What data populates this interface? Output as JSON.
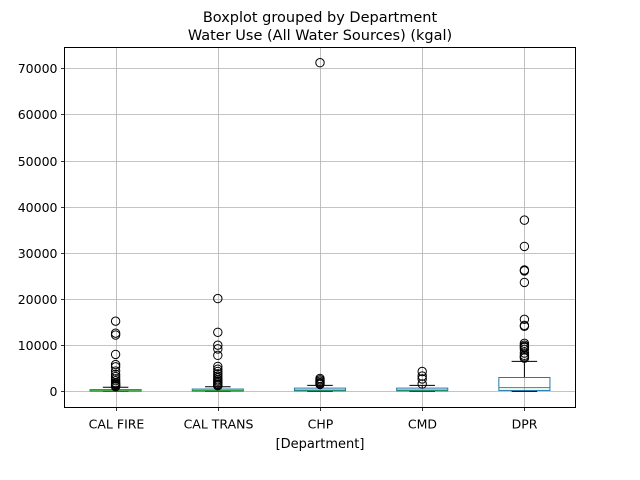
{
  "chart_data": {
    "type": "boxplot",
    "title": "Boxplot grouped by Department",
    "subtitle": "Water Use (All Water Sources) (kgal)",
    "xlabel": "[Department]",
    "ylabel": "",
    "ylim": [
      -3500,
      74500
    ],
    "yticks": [
      0,
      10000,
      20000,
      30000,
      40000,
      50000,
      60000,
      70000
    ],
    "grid": true,
    "colors": {
      "box": "#1f77b4",
      "median": "#2ca02c",
      "whisker": "#000000",
      "grid": "#b0b0b0"
    },
    "categories": [
      "CAL FIRE",
      "CAL TRANS",
      "CHP",
      "CMD",
      "DPR"
    ],
    "boxes": [
      {
        "label": "CAL FIRE",
        "whislo": 0,
        "q1": 40,
        "med": 150,
        "q3": 380,
        "whishi": 900,
        "fliers": [
          15200,
          12600,
          12200,
          8000,
          5800,
          5300,
          4400,
          3700,
          3200,
          2700,
          2300,
          1900,
          1700,
          1500,
          1300,
          1150,
          1000
        ]
      },
      {
        "label": "CAL TRANS",
        "whislo": 0,
        "q1": 50,
        "med": 200,
        "q3": 500,
        "whishi": 1000,
        "fliers": [
          20100,
          12800,
          10000,
          9200,
          7800,
          5400,
          4800,
          4300,
          3800,
          3300,
          2900,
          2500,
          2200,
          1900,
          1600,
          1400,
          1200
        ]
      },
      {
        "label": "CHP",
        "whislo": 0,
        "q1": 100,
        "med": 300,
        "q3": 700,
        "whishi": 1300,
        "fliers": [
          71200,
          2800,
          2500,
          2200,
          1900,
          1700,
          1500
        ]
      },
      {
        "label": "CMD",
        "whislo": 0,
        "q1": 100,
        "med": 300,
        "q3": 700,
        "whishi": 1300,
        "fliers": [
          4300,
          3300,
          2700,
          1600
        ]
      },
      {
        "label": "DPR",
        "whislo": 0,
        "q1": 200,
        "med": 800,
        "q3": 3000,
        "whishi": 6500,
        "fliers": [
          37100,
          31400,
          26300,
          26100,
          23600,
          15600,
          14300,
          14100,
          10400,
          10000,
          9700,
          9500,
          9100,
          8300,
          7800,
          7500,
          7200
        ]
      }
    ]
  }
}
